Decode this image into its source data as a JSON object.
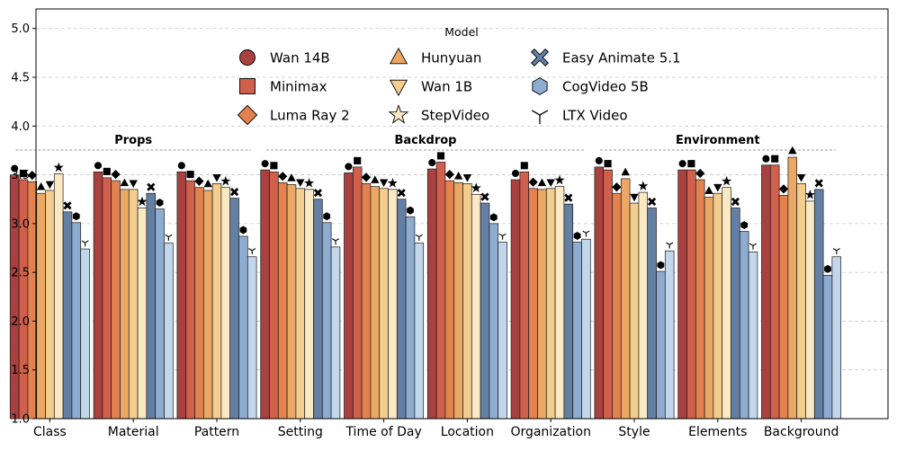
{
  "chart_data": {
    "type": "bar",
    "ylim": [
      1.0,
      5.2
    ],
    "yticks": [
      "1.0",
      "1.5",
      "2.0",
      "2.5",
      "3.0",
      "3.5",
      "4.0",
      "4.5",
      "5.0"
    ],
    "ytick_values": [
      1.0,
      1.5,
      2.0,
      2.5,
      3.0,
      3.5,
      4.0,
      4.5,
      5.0
    ],
    "grid": true,
    "legend_title": "Model",
    "legend_position": "top-center",
    "categories": [
      "Class",
      "Material",
      "Pattern",
      "Setting",
      "Time of Day",
      "Location",
      "Organization",
      "Style",
      "Elements",
      "Background"
    ],
    "groups": [
      {
        "label": "Props",
        "start": 0,
        "end": 2
      },
      {
        "label": "Backdrop",
        "start": 3,
        "end": 6
      },
      {
        "label": "Environment",
        "start": 7,
        "end": 9
      }
    ],
    "series": [
      {
        "name": "Wan 14B",
        "color": "#a8413f",
        "marker": "circle",
        "values": [
          3.5,
          3.53,
          3.53,
          3.55,
          3.52,
          3.56,
          3.45,
          3.58,
          3.55,
          3.6
        ]
      },
      {
        "name": "Minimax",
        "color": "#d0604b",
        "marker": "square",
        "values": [
          3.45,
          3.47,
          3.44,
          3.53,
          3.58,
          3.63,
          3.53,
          3.55,
          3.55,
          3.6
        ]
      },
      {
        "name": "Luma Ray 2",
        "color": "#e3824f",
        "marker": "diamond",
        "values": [
          3.43,
          3.44,
          3.37,
          3.42,
          3.41,
          3.44,
          3.36,
          3.31,
          3.45,
          3.29
        ]
      },
      {
        "name": "Hunyuan",
        "color": "#eba864",
        "marker": "triangle-up",
        "values": [
          3.31,
          3.35,
          3.34,
          3.4,
          3.38,
          3.42,
          3.35,
          3.46,
          3.27,
          3.68
        ]
      },
      {
        "name": "Wan 1B",
        "color": "#f3cd8d",
        "marker": "triangle-down",
        "values": [
          3.34,
          3.35,
          3.41,
          3.36,
          3.36,
          3.41,
          3.36,
          3.21,
          3.31,
          3.41
        ]
      },
      {
        "name": "StepVideo",
        "color": "#fbe9c4",
        "marker": "star",
        "values": [
          3.51,
          3.16,
          3.37,
          3.35,
          3.35,
          3.3,
          3.38,
          3.32,
          3.37,
          3.23
        ]
      },
      {
        "name": "Easy Animate 5.1",
        "color": "#647fa4",
        "marker": "x",
        "values": [
          3.12,
          3.31,
          3.26,
          3.25,
          3.25,
          3.21,
          3.2,
          3.16,
          3.16,
          3.35
        ]
      },
      {
        "name": "CogVideo 5B",
        "color": "#8eacd0",
        "marker": "hexagon",
        "values": [
          3.01,
          3.15,
          2.87,
          3.01,
          3.07,
          3.0,
          2.81,
          2.51,
          2.92,
          2.47
        ]
      },
      {
        "name": "LTX Video",
        "color": "#c2d6ec",
        "marker": "tri-down",
        "values": [
          2.74,
          2.8,
          2.66,
          2.76,
          2.8,
          2.81,
          2.84,
          2.72,
          2.71,
          2.66
        ]
      }
    ]
  }
}
